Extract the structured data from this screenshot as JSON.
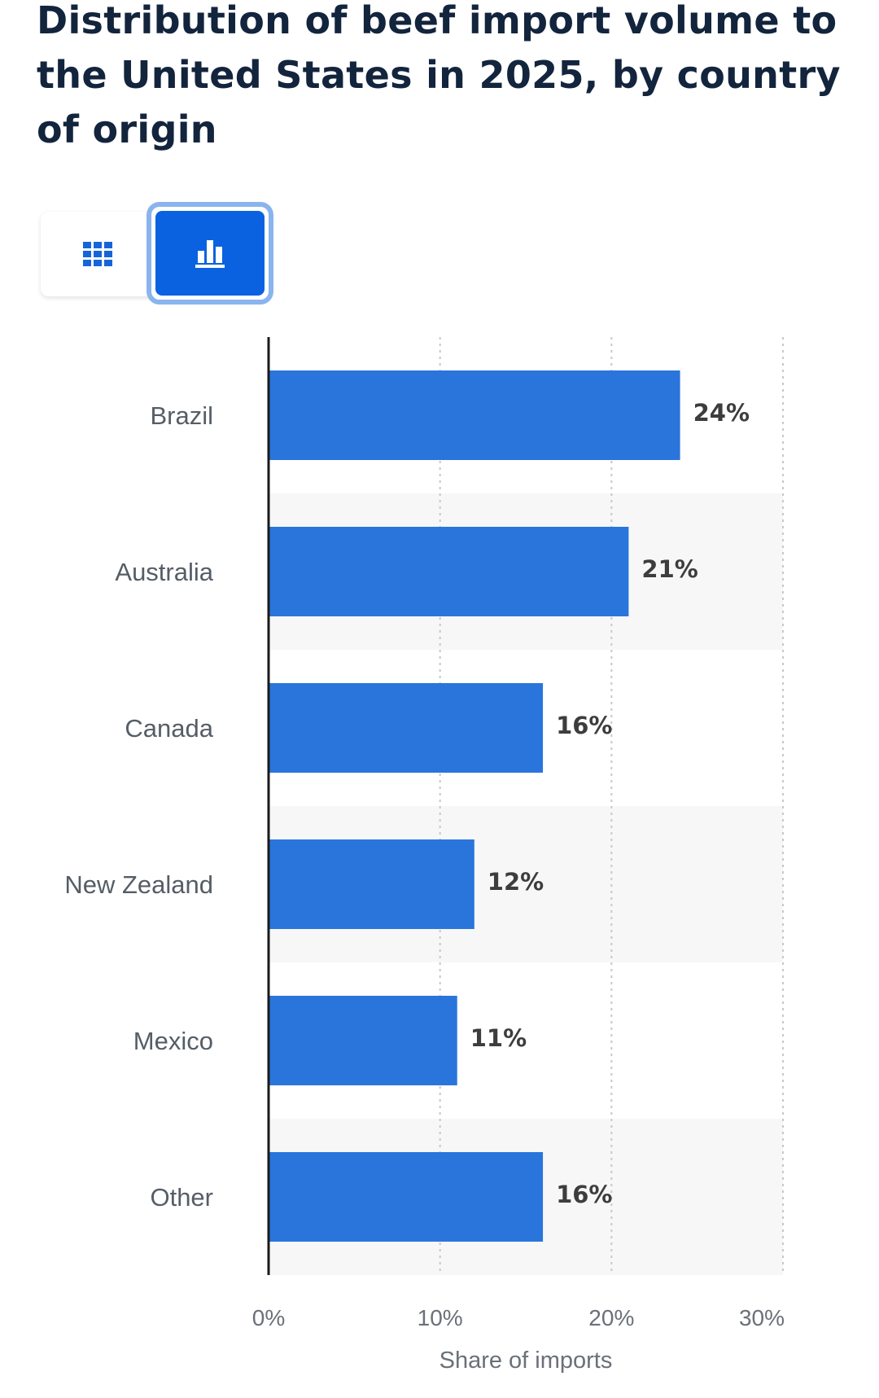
{
  "title": "Distribution of beef import volume to the United States in 2025, by country of origin",
  "view_toggle": {
    "table_icon": "grid-icon",
    "chart_icon": "bar-chart-icon",
    "selected": "chart"
  },
  "colors": {
    "bar": "#2a75dc",
    "title": "#13243d",
    "toggle_active": "#0a62e0",
    "toggle_active_border": "#8ab4ee",
    "icon_table": "#1565d8",
    "stripe": "#f7f7f7",
    "grid": "#c8c8c8",
    "axis": "#1a1a1a"
  },
  "chart_data": {
    "type": "bar",
    "orientation": "horizontal",
    "categories": [
      "Brazil",
      "Australia",
      "Canada",
      "New Zealand",
      "Mexico",
      "Other"
    ],
    "values": [
      24,
      21,
      16,
      12,
      11,
      16
    ],
    "value_labels": [
      "24%",
      "21%",
      "16%",
      "12%",
      "11%",
      "16%"
    ],
    "xlim": [
      0,
      30
    ],
    "xticks": [
      0,
      10,
      20,
      30
    ],
    "xtick_labels": [
      "0%",
      "10%",
      "20%",
      "30%"
    ],
    "xlabel": "Share of imports",
    "ylabel": "",
    "grid": true,
    "legend": "none"
  }
}
